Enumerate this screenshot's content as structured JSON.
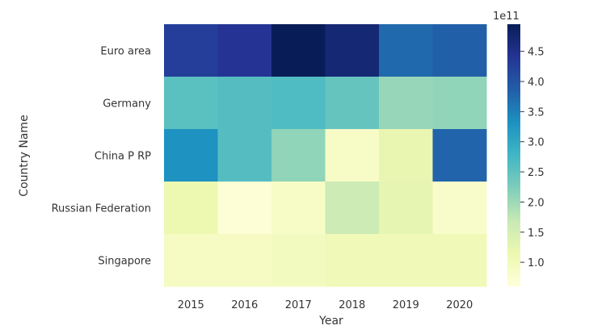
{
  "chart_data": {
    "type": "heatmap",
    "title": "",
    "xlabel": "Year",
    "ylabel": "Country Name",
    "x": [
      "2015",
      "2016",
      "2017",
      "2018",
      "2019",
      "2020"
    ],
    "y": [
      "Euro area",
      "Germany",
      "China P RP",
      "Russian Federation",
      "Singapore"
    ],
    "values": [
      [
        4.28,
        4.4,
        4.95,
        4.7,
        3.75,
        3.85
      ],
      [
        2.55,
        2.6,
        2.65,
        2.45,
        2.05,
        2.1
      ],
      [
        3.3,
        2.6,
        2.1,
        0.85,
        1.2,
        3.8
      ],
      [
        1.15,
        0.65,
        0.85,
        1.6,
        1.25,
        0.8
      ],
      [
        0.9,
        0.9,
        0.95,
        1.05,
        1.05,
        1.05
      ]
    ],
    "colorbar": {
      "multiplier_label": "1e11",
      "ticks": [
        "1.0",
        "1.5",
        "2.0",
        "2.5",
        "3.0",
        "3.5",
        "4.0",
        "4.5"
      ],
      "tick_values": [
        1.0,
        1.5,
        2.0,
        2.5,
        3.0,
        3.5,
        4.0,
        4.5
      ],
      "range": [
        0.6,
        4.95
      ],
      "colormap": "YlGnBu"
    },
    "colormap_stops": [
      "#ffffd9",
      "#edf8b1",
      "#c7e9b4",
      "#7fcdbb",
      "#41b6c4",
      "#1d91c0",
      "#225ea8",
      "#253494",
      "#081d58"
    ]
  }
}
